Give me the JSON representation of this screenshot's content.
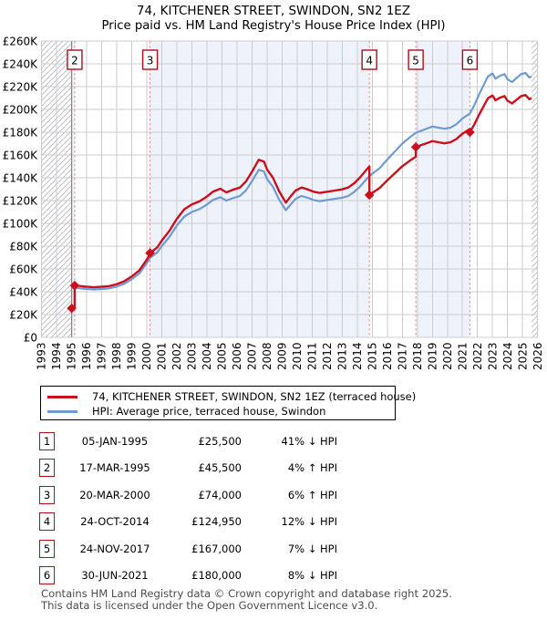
{
  "page_title": "74, KITCHENER STREET, SWINDON, SN2 1EZ",
  "page_subtitle": "Price paid vs. HM Land Registry's House Price Index (HPI)",
  "legend": {
    "items": [
      {
        "id": "price_paid",
        "label": "74, KITCHENER STREET, SWINDON, SN2 1EZ (terraced house)",
        "color": "#cc0f1d"
      },
      {
        "id": "hpi",
        "label": "HPI: Average price, terraced house, Swindon",
        "color": "#6f9bd1"
      }
    ]
  },
  "transactions": {
    "rows": [
      {
        "num": "1",
        "date": "05-JAN-1995",
        "price": "£25,500",
        "pct": "41%",
        "dir": "↓",
        "ref": "HPI"
      },
      {
        "num": "2",
        "date": "17-MAR-1995",
        "price": "£45,500",
        "pct": "4%",
        "dir": "↑",
        "ref": "HPI"
      },
      {
        "num": "3",
        "date": "20-MAR-2000",
        "price": "£74,000",
        "pct": "6%",
        "dir": "↑",
        "ref": "HPI"
      },
      {
        "num": "4",
        "date": "24-OCT-2014",
        "price": "£124,950",
        "pct": "12%",
        "dir": "↓",
        "ref": "HPI"
      },
      {
        "num": "5",
        "date": "24-NOV-2017",
        "price": "£167,000",
        "pct": "7%",
        "dir": "↓",
        "ref": "HPI"
      },
      {
        "num": "6",
        "date": "30-JUN-2021",
        "price": "£180,000",
        "pct": "8%",
        "dir": "↓",
        "ref": "HPI"
      }
    ]
  },
  "footer": {
    "line1": "Contains HM Land Registry data © Crown copyright and database right 2025.",
    "line2": "This data is licensed under the Open Government Licence v3.0."
  },
  "chart_data": {
    "type": "line",
    "title": "74, KITCHENER STREET, SWINDON, SN2 1EZ",
    "subtitle": "Price paid vs. HM Land Registry's House Price Index (HPI)",
    "x_axis": {
      "label": "year",
      "start": 1993,
      "end": 2026,
      "tick_every": 1
    },
    "y_axis": {
      "unit": "GBP thousands",
      "min": 0,
      "max": 260,
      "tick_step": 20,
      "tick_labels": [
        "£0",
        "£20K",
        "£40K",
        "£60K",
        "£80K",
        "£100K",
        "£120K",
        "£140K",
        "£160K",
        "£180K",
        "£200K",
        "£220K",
        "£240K",
        "£260K"
      ]
    },
    "grid": true,
    "legend_position": "below",
    "series": [
      {
        "name": "HPI: Average price, terraced house, Swindon",
        "color": "#6f9bd1",
        "points": [
          [
            1995.01,
            43.2
          ],
          [
            1995.3,
            43.6
          ],
          [
            1995.7,
            42.8
          ],
          [
            1996,
            42.5
          ],
          [
            1996.5,
            42
          ],
          [
            1997,
            42.4
          ],
          [
            1997.5,
            43
          ],
          [
            1998,
            44.5
          ],
          [
            1998.5,
            47
          ],
          [
            1999,
            51
          ],
          [
            1999.5,
            56
          ],
          [
            2000,
            65
          ],
          [
            2000.22,
            69.8
          ],
          [
            2000.7,
            74.5
          ],
          [
            2001,
            80
          ],
          [
            2001.5,
            88
          ],
          [
            2002,
            98
          ],
          [
            2002.5,
            106
          ],
          [
            2003,
            110
          ],
          [
            2003.5,
            112.5
          ],
          [
            2004,
            116.5
          ],
          [
            2004.4,
            120.5
          ],
          [
            2004.9,
            123
          ],
          [
            2005.3,
            120
          ],
          [
            2005.7,
            122
          ],
          [
            2006.2,
            124
          ],
          [
            2006.6,
            129
          ],
          [
            2007,
            137
          ],
          [
            2007.45,
            147
          ],
          [
            2007.8,
            145.5
          ],
          [
            2008,
            139
          ],
          [
            2008.4,
            132
          ],
          [
            2008.8,
            121
          ],
          [
            2009.25,
            111.5
          ],
          [
            2009.6,
            117
          ],
          [
            2009.9,
            121.5
          ],
          [
            2010.3,
            124
          ],
          [
            2010.7,
            122.5
          ],
          [
            2011.1,
            120.5
          ],
          [
            2011.5,
            119.5
          ],
          [
            2012,
            120.5
          ],
          [
            2012.5,
            121.5
          ],
          [
            2013,
            122.5
          ],
          [
            2013.4,
            124
          ],
          [
            2013.8,
            127.5
          ],
          [
            2014.2,
            132.5
          ],
          [
            2014.6,
            138.5
          ],
          [
            2014.81,
            141.5
          ],
          [
            2015,
            143.5
          ],
          [
            2015.5,
            148.5
          ],
          [
            2016,
            156
          ],
          [
            2016.5,
            163
          ],
          [
            2017,
            170
          ],
          [
            2017.5,
            175.5
          ],
          [
            2017.9,
            179.5
          ],
          [
            2018.3,
            181.5
          ],
          [
            2018.7,
            183.5
          ],
          [
            2019,
            185
          ],
          [
            2019.4,
            184
          ],
          [
            2019.8,
            183
          ],
          [
            2020.2,
            184
          ],
          [
            2020.6,
            187
          ],
          [
            2021,
            192
          ],
          [
            2021.5,
            196.5
          ],
          [
            2021.8,
            204
          ],
          [
            2022.1,
            213
          ],
          [
            2022.4,
            221
          ],
          [
            2022.7,
            229
          ],
          [
            2023,
            231.5
          ],
          [
            2023.2,
            227
          ],
          [
            2023.5,
            229.5
          ],
          [
            2023.8,
            231
          ],
          [
            2024,
            226.5
          ],
          [
            2024.3,
            224
          ],
          [
            2024.6,
            227.5
          ],
          [
            2024.9,
            231
          ],
          [
            2025.2,
            232
          ],
          [
            2025.45,
            228
          ],
          [
            2025.6,
            229
          ]
        ]
      },
      {
        "name": "74, KITCHENER STREET, SWINDON, SN2 1EZ (terraced house)",
        "color": "#cc0f1d",
        "derivation": "HPI series scaled to price paid between consecutive sales",
        "segments": [
          {
            "from": 1995.01,
            "to": 1995.21,
            "factor": 0.5903
          },
          {
            "from": 1995.21,
            "to": 2000.22,
            "factor": 1.0465
          },
          {
            "from": 2000.22,
            "to": 2014.81,
            "factor": 1.0602
          },
          {
            "from": 2014.81,
            "to": 2017.9,
            "factor": 0.8831
          },
          {
            "from": 2017.9,
            "to": 2021.494,
            "factor": 0.9304
          },
          {
            "from": 2021.494,
            "to": 2025.6,
            "factor": 0.9164
          }
        ]
      }
    ],
    "sales": [
      {
        "num": 1,
        "year": 1995.01,
        "price_k": 25.5,
        "price_label": "£25,500",
        "boxed": false
      },
      {
        "num": 2,
        "year": 1995.21,
        "price_k": 45.5,
        "price_label": "£45,500",
        "boxed": true
      },
      {
        "num": 3,
        "year": 2000.22,
        "price_k": 74,
        "price_label": "£74,000",
        "boxed": true
      },
      {
        "num": 4,
        "year": 2014.81,
        "price_k": 124.95,
        "price_label": "£124,950",
        "boxed": true
      },
      {
        "num": 5,
        "year": 2017.9,
        "price_k": 167,
        "price_label": "£167,000",
        "boxed": true
      },
      {
        "num": 6,
        "year": 2021.494,
        "price_k": 180,
        "price_label": "£180,000",
        "boxed": true
      }
    ],
    "ownership_shaded_bands": [
      [
        1995.01,
        1995.21
      ],
      [
        2000.22,
        2014.81
      ],
      [
        2017.9,
        2021.494
      ]
    ],
    "no_data_hatched": [
      [
        1993,
        1995.01
      ],
      [
        2025.6,
        2026
      ]
    ],
    "colors": {
      "grid": "#cccccc",
      "band": "#edf2fb",
      "sale_line": "#ef8b8b",
      "first_sale_line": "#777777",
      "sale_box_border": "#b00d15",
      "hatch": "#c2c2c6",
      "axis_text": "#000000"
    }
  }
}
